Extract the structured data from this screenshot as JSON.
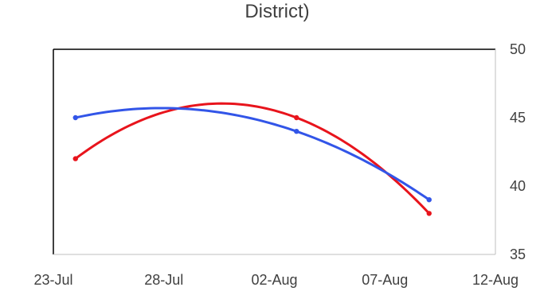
{
  "chart_data": {
    "type": "line",
    "title": "District)",
    "xlabel": "",
    "ylabel": "",
    "x_axis": {
      "type": "date",
      "min": "2023-07-23",
      "max": "2023-08-12",
      "ticks": [
        "2023-07-23",
        "2023-07-28",
        "2023-08-02",
        "2023-08-07",
        "2023-08-12"
      ],
      "tick_labels": [
        "23-Jul",
        "28-Jul",
        "02-Aug",
        "07-Aug",
        "12-Aug"
      ]
    },
    "y_axis": {
      "position": "right",
      "ylim": [
        35,
        50
      ],
      "ticks": [
        35,
        40,
        45,
        50
      ],
      "tick_labels": [
        "35",
        "40",
        "45",
        "50"
      ]
    },
    "grid": false,
    "legend": "none",
    "smooth": true,
    "series": [
      {
        "color": "#e8141c",
        "x": [
          "2023-07-24",
          "2023-08-03",
          "2023-08-09"
        ],
        "y": [
          42,
          45,
          38
        ]
      },
      {
        "color": "#3255e8",
        "x": [
          "2023-07-24",
          "2023-08-03",
          "2023-08-09"
        ],
        "y": [
          45,
          44,
          39
        ]
      }
    ]
  }
}
